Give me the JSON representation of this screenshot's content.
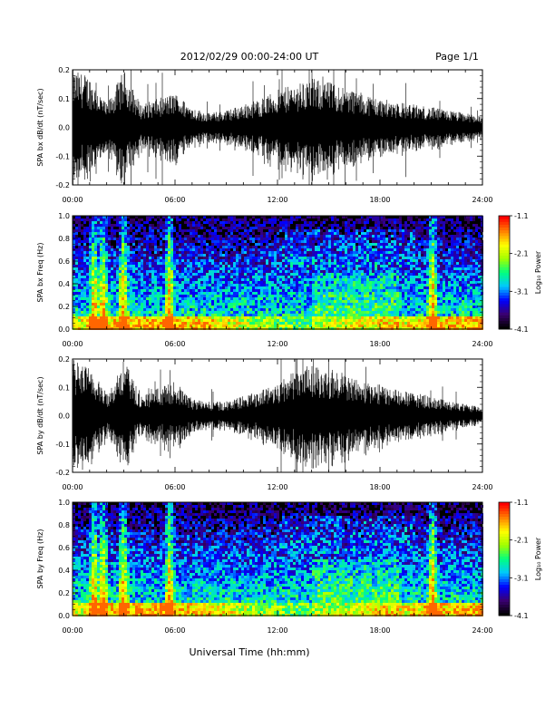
{
  "header": {
    "title": "2012/02/29   00:00-24:00 UT",
    "page": "Page 1/1"
  },
  "xaxis": {
    "label": "Universal Time (hh:mm)",
    "ticks": [
      "00:00",
      "06:00",
      "12:00",
      "18:00",
      "24:00"
    ]
  },
  "colorbar": {
    "label": "Log₁₀ Power",
    "ticks": [
      "-1.1",
      "-2.1",
      "-3.1",
      "-4.1"
    ],
    "colors": [
      "#000000",
      "#3a0070",
      "#0000ff",
      "#00c8ff",
      "#00ff80",
      "#a0ff00",
      "#ffff00",
      "#ff8000",
      "#ff0000"
    ]
  },
  "chart_data": [
    {
      "type": "line",
      "ylabel": "SPA bx dB/dt (nT/sec)",
      "xlim": [
        0,
        24
      ],
      "ylim": [
        -0.2,
        0.2
      ],
      "yticks": [
        "0.2",
        "0.1",
        "0.0",
        "-0.1",
        "-0.2"
      ],
      "envelope": {
        "hours": [
          0,
          1,
          2,
          3,
          4,
          5,
          6,
          7,
          8,
          9,
          10,
          11,
          12,
          13,
          14,
          15,
          16,
          17,
          18,
          19,
          20,
          21,
          22,
          23,
          24
        ],
        "amplitude": [
          0.2,
          0.18,
          0.08,
          0.2,
          0.08,
          0.1,
          0.12,
          0.07,
          0.05,
          0.06,
          0.08,
          0.1,
          0.13,
          0.15,
          0.17,
          0.16,
          0.14,
          0.12,
          0.1,
          0.09,
          0.08,
          0.07,
          0.06,
          0.05,
          0.04
        ]
      }
    },
    {
      "type": "heatmap",
      "ylabel": "SPA bx Freq (Hz)",
      "xlim": [
        0,
        24
      ],
      "ylim": [
        0,
        1.0
      ],
      "yticks": [
        "1.0",
        "0.8",
        "0.6",
        "0.4",
        "0.2",
        "0.0"
      ],
      "zlim": [
        -4.1,
        -1.1
      ]
    },
    {
      "type": "line",
      "ylabel": "SPA by dB/dt (nT/sec)",
      "xlim": [
        0,
        24
      ],
      "ylim": [
        -0.2,
        0.2
      ],
      "yticks": [
        "0.2",
        "0.1",
        "0.0",
        "-0.1",
        "-0.2"
      ],
      "envelope": {
        "hours": [
          0,
          1,
          2,
          3,
          4,
          5,
          6,
          7,
          8,
          9,
          10,
          11,
          12,
          13,
          14,
          15,
          16,
          17,
          18,
          19,
          20,
          21,
          22,
          23,
          24
        ],
        "amplitude": [
          0.2,
          0.17,
          0.08,
          0.2,
          0.07,
          0.1,
          0.12,
          0.06,
          0.05,
          0.05,
          0.07,
          0.09,
          0.12,
          0.16,
          0.18,
          0.17,
          0.15,
          0.12,
          0.11,
          0.09,
          0.08,
          0.07,
          0.05,
          0.04,
          0.03
        ]
      }
    },
    {
      "type": "heatmap",
      "ylabel": "SPA by Freq (Hz)",
      "xlim": [
        0,
        24
      ],
      "ylim": [
        0,
        1.0
      ],
      "yticks": [
        "1.0",
        "0.8",
        "0.6",
        "0.4",
        "0.2",
        "0.0"
      ],
      "zlim": [
        -4.1,
        -1.1
      ]
    }
  ]
}
